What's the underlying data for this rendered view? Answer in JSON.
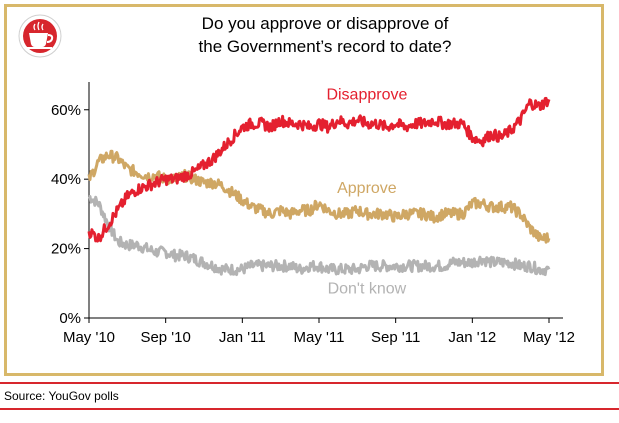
{
  "title_line1": "Do you approve or disapprove of",
  "title_line2": "the Government’s record to date?",
  "source": "Source: YouGov polls",
  "chart_data": {
    "type": "line",
    "title": "Do you approve or disapprove of the Government’s record to date?",
    "x_ticks": [
      "May '10",
      "Sep '10",
      "Jan '11",
      "May '11",
      "Sep '11",
      "Jan '12",
      "May '12"
    ],
    "y_ticks": [
      "0%",
      "20%",
      "40%",
      "60%"
    ],
    "ylim": [
      0,
      68
    ],
    "x_months": [
      0,
      4,
      8,
      12,
      16,
      20,
      24
    ],
    "series": [
      {
        "name": "Disapprove",
        "color": "#e4202f",
        "x": [
          0,
          0.5,
          1,
          1.5,
          2,
          2.5,
          3,
          3.5,
          4,
          4.5,
          5,
          5.5,
          6,
          6.5,
          7,
          7.5,
          8,
          8.5,
          9,
          9.5,
          10,
          10.5,
          11,
          11.5,
          12,
          12.5,
          13,
          13.5,
          14,
          14.5,
          15,
          15.5,
          16,
          16.5,
          17,
          17.5,
          18,
          18.5,
          19,
          19.5,
          20,
          20.5,
          21,
          21.5,
          22,
          22.5,
          23,
          23.5,
          24
        ],
        "values": [
          25,
          23,
          27,
          31,
          35,
          37,
          38,
          39,
          40,
          40,
          41,
          42,
          44,
          46,
          49,
          52,
          55,
          56,
          56,
          55,
          57,
          56,
          56,
          55,
          56,
          55,
          57,
          56,
          57,
          56,
          56,
          55,
          56,
          55,
          56,
          56,
          57,
          56,
          56,
          56,
          52,
          51,
          53,
          52,
          54,
          57,
          62,
          61,
          63
        ]
      },
      {
        "name": "Approve",
        "color": "#cfa764",
        "x": [
          0,
          0.5,
          1,
          1.5,
          2,
          2.5,
          3,
          3.5,
          4,
          4.5,
          5,
          5.5,
          6,
          6.5,
          7,
          7.5,
          8,
          8.5,
          9,
          9.5,
          10,
          10.5,
          11,
          11.5,
          12,
          12.5,
          13,
          13.5,
          14,
          14.5,
          15,
          15.5,
          16,
          16.5,
          17,
          17.5,
          18,
          18.5,
          19,
          19.5,
          20,
          20.5,
          21,
          21.5,
          22,
          22.5,
          23,
          23.5,
          24
        ],
        "values": [
          40,
          45,
          47,
          46,
          43,
          42,
          41,
          41,
          40,
          40,
          41,
          40,
          39,
          39,
          38,
          36,
          34,
          32,
          31,
          30,
          31,
          30,
          31,
          31,
          33,
          31,
          30,
          30,
          31,
          30,
          30,
          30,
          29,
          30,
          30,
          30,
          29,
          30,
          30,
          30,
          33,
          33,
          32,
          32,
          32,
          30,
          26,
          23,
          23
        ]
      },
      {
        "name": "Don't know",
        "color": "#b3b3b3",
        "x": [
          0,
          0.5,
          1,
          1.5,
          2,
          2.5,
          3,
          3.5,
          4,
          4.5,
          5,
          5.5,
          6,
          6.5,
          7,
          7.5,
          8,
          8.5,
          9,
          9.5,
          10,
          10.5,
          11,
          11.5,
          12,
          12.5,
          13,
          13.5,
          14,
          14.5,
          15,
          15.5,
          16,
          16.5,
          17,
          17.5,
          18,
          18.5,
          19,
          19.5,
          20,
          20.5,
          21,
          21.5,
          22,
          22.5,
          23,
          23.5,
          24
        ],
        "values": [
          35,
          33,
          27,
          22,
          21,
          21,
          20,
          19,
          19,
          18,
          18,
          17,
          16,
          15,
          14,
          14,
          14,
          15,
          15,
          15,
          15,
          15,
          14,
          15,
          15,
          14,
          14,
          14,
          14,
          15,
          15,
          15,
          15,
          15,
          15,
          15,
          15,
          15,
          16,
          16,
          16,
          17,
          16,
          16,
          16,
          15,
          15,
          14,
          14
        ]
      }
    ]
  }
}
